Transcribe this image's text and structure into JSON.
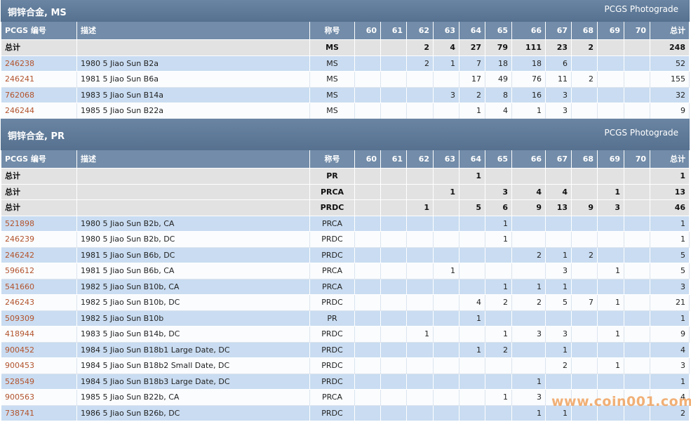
{
  "sections": [
    {
      "title": "铜锌合金, MS",
      "photograde": "PCGS Photograde",
      "columns": [
        "PCGS 编号",
        "描述",
        "称号",
        "60",
        "61",
        "62",
        "63",
        "64",
        "65",
        "66",
        "67",
        "68",
        "69",
        "70",
        "总计"
      ],
      "totals": [
        [
          "总计",
          null,
          "MS",
          null,
          null,
          2,
          4,
          27,
          79,
          111,
          23,
          2,
          null,
          null,
          248
        ]
      ],
      "rows": [
        [
          "246238",
          "1980 5 Jiao Sun B2a",
          "MS",
          null,
          null,
          2,
          1,
          7,
          18,
          18,
          6,
          null,
          null,
          null,
          52
        ],
        [
          "246241",
          "1981 5 Jiao Sun B6a",
          "MS",
          null,
          null,
          null,
          null,
          17,
          49,
          76,
          11,
          2,
          null,
          null,
          155
        ],
        [
          "762068",
          "1983 5 Jiao Sun B14a",
          "MS",
          null,
          null,
          null,
          3,
          2,
          8,
          16,
          3,
          null,
          null,
          null,
          32
        ],
        [
          "246244",
          "1985 5 Jiao Sun B22a",
          "MS",
          null,
          null,
          null,
          null,
          1,
          4,
          1,
          3,
          null,
          null,
          null,
          9
        ]
      ]
    },
    {
      "title": "铜锌合金, PR",
      "photograde": "PCGS Photograde",
      "columns": [
        "PCGS 编号",
        "描述",
        "称号",
        "60",
        "61",
        "62",
        "63",
        "64",
        "65",
        "66",
        "67",
        "68",
        "69",
        "70",
        "总计"
      ],
      "totals": [
        [
          "总计",
          null,
          "PR",
          null,
          null,
          null,
          null,
          1,
          null,
          null,
          null,
          null,
          null,
          null,
          1
        ],
        [
          "总计",
          null,
          "PRCA",
          null,
          null,
          null,
          1,
          null,
          3,
          4,
          4,
          null,
          1,
          null,
          13
        ],
        [
          "总计",
          null,
          "PRDC",
          null,
          null,
          1,
          null,
          5,
          6,
          9,
          13,
          9,
          3,
          null,
          46
        ]
      ],
      "rows": [
        [
          "521898",
          "1980 5 Jiao Sun B2b, CA",
          "PRCA",
          null,
          null,
          null,
          null,
          null,
          1,
          null,
          null,
          null,
          null,
          null,
          1
        ],
        [
          "246239",
          "1980 5 Jiao Sun B2b, DC",
          "PRDC",
          null,
          null,
          null,
          null,
          null,
          1,
          null,
          null,
          null,
          null,
          null,
          1
        ],
        [
          "246242",
          "1981 5 Jiao Sun B6b, DC",
          "PRDC",
          null,
          null,
          null,
          null,
          null,
          null,
          2,
          1,
          2,
          null,
          null,
          5
        ],
        [
          "596612",
          "1981 5 Jiao Sun B6b, CA",
          "PRCA",
          null,
          null,
          null,
          1,
          null,
          null,
          null,
          3,
          null,
          1,
          null,
          5
        ],
        [
          "541660",
          "1982 5 Jiao Sun B10b, CA",
          "PRCA",
          null,
          null,
          null,
          null,
          null,
          1,
          1,
          1,
          null,
          null,
          null,
          3
        ],
        [
          "246243",
          "1982 5 Jiao Sun B10b, DC",
          "PRDC",
          null,
          null,
          null,
          null,
          4,
          2,
          2,
          5,
          7,
          1,
          null,
          21
        ],
        [
          "509309",
          "1982 5 Jiao Sun B10b",
          "PR",
          null,
          null,
          null,
          null,
          1,
          null,
          null,
          null,
          null,
          null,
          null,
          1
        ],
        [
          "418944",
          "1983 5 Jiao Sun B14b, DC",
          "PRDC",
          null,
          null,
          1,
          null,
          null,
          1,
          3,
          3,
          null,
          1,
          null,
          9
        ],
        [
          "900452",
          "1984 5 Jiao Sun B18b1 Large Date, DC",
          "PRDC",
          null,
          null,
          null,
          null,
          1,
          2,
          null,
          1,
          null,
          null,
          null,
          4
        ],
        [
          "900453",
          "1984 5 Jiao Sun B18b2 Small Date, DC",
          "PRDC",
          null,
          null,
          null,
          null,
          null,
          null,
          null,
          2,
          null,
          1,
          null,
          3
        ],
        [
          "528549",
          "1984 5 Jiao Sun B18b3 Large Date, DC",
          "PRDC",
          null,
          null,
          null,
          null,
          null,
          null,
          1,
          null,
          null,
          null,
          null,
          1
        ],
        [
          "900563",
          "1985 5 Jiao Sun B22b, CA",
          "PRCA",
          null,
          null,
          null,
          null,
          null,
          1,
          3,
          null,
          null,
          null,
          null,
          4
        ],
        [
          "738741",
          "1986 5 Jiao Sun B26b, DC",
          "PRDC",
          null,
          null,
          null,
          null,
          null,
          null,
          1,
          1,
          null,
          null,
          null,
          2
        ]
      ]
    }
  ],
  "watermark": "www.coin001.com"
}
